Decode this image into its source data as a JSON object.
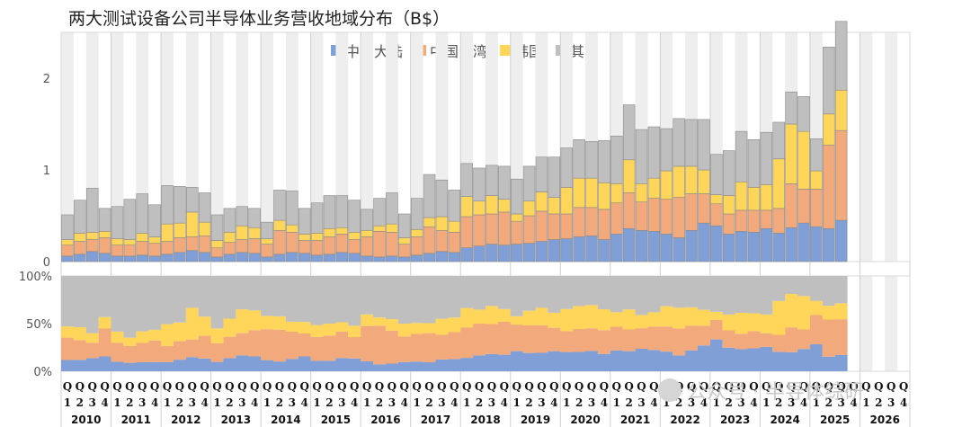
{
  "chart_data": {
    "type": "bar",
    "title": "两大测试设备公司半导体业务营收地域分布（B$）",
    "legend_position": "top",
    "years": [
      "2010",
      "2011",
      "2012",
      "2013",
      "2014",
      "2015",
      "2016",
      "2017",
      "2018",
      "2019",
      "2020",
      "2021",
      "2022",
      "2023",
      "2024",
      "2025",
      "2026"
    ],
    "quarter_labels": [
      "Q1",
      "Q2",
      "Q3",
      "Q4"
    ],
    "series": [
      {
        "name": "中国大陆",
        "color": "#7f9fd6",
        "values": [
          0.06,
          0.08,
          0.11,
          0.09,
          0.06,
          0.06,
          0.07,
          0.06,
          0.08,
          0.1,
          0.12,
          0.1,
          0.05,
          0.08,
          0.1,
          0.09,
          0.05,
          0.08,
          0.1,
          0.09,
          0.07,
          0.08,
          0.1,
          0.09,
          0.06,
          0.05,
          0.06,
          0.05,
          0.07,
          0.09,
          0.11,
          0.1,
          0.15,
          0.17,
          0.19,
          0.18,
          0.19,
          0.2,
          0.22,
          0.24,
          0.25,
          0.27,
          0.28,
          0.24,
          0.3,
          0.36,
          0.34,
          0.33,
          0.3,
          0.26,
          0.34,
          0.42,
          0.39,
          0.3,
          0.33,
          0.32,
          0.36,
          0.31,
          0.37,
          0.42,
          0.38,
          0.36,
          0.45
        ]
      },
      {
        "name": "中国台湾",
        "color": "#f2a97c",
        "values": [
          0.12,
          0.14,
          0.13,
          0.17,
          0.12,
          0.12,
          0.15,
          0.14,
          0.14,
          0.16,
          0.15,
          0.18,
          0.1,
          0.13,
          0.14,
          0.16,
          0.14,
          0.26,
          0.22,
          0.14,
          0.16,
          0.19,
          0.2,
          0.15,
          0.21,
          0.28,
          0.26,
          0.14,
          0.2,
          0.29,
          0.23,
          0.22,
          0.34,
          0.34,
          0.33,
          0.36,
          0.25,
          0.3,
          0.33,
          0.28,
          0.27,
          0.32,
          0.31,
          0.33,
          0.34,
          0.39,
          0.31,
          0.36,
          0.38,
          0.44,
          0.4,
          0.32,
          0.24,
          0.22,
          0.23,
          0.24,
          0.2,
          0.27,
          0.48,
          0.37,
          0.41,
          0.91,
          0.98
        ]
      },
      {
        "name": "韩国",
        "color": "#ffd55a",
        "values": [
          0.06,
          0.09,
          0.08,
          0.07,
          0.07,
          0.06,
          0.09,
          0.07,
          0.19,
          0.16,
          0.27,
          0.15,
          0.08,
          0.11,
          0.15,
          0.12,
          0.06,
          0.11,
          0.08,
          0.07,
          0.08,
          0.09,
          0.07,
          0.08,
          0.07,
          0.06,
          0.09,
          0.07,
          0.08,
          0.1,
          0.15,
          0.12,
          0.22,
          0.15,
          0.2,
          0.14,
          0.08,
          0.16,
          0.21,
          0.18,
          0.29,
          0.32,
          0.32,
          0.29,
          0.21,
          0.36,
          0.2,
          0.22,
          0.31,
          0.34,
          0.3,
          0.26,
          0.1,
          0.2,
          0.31,
          0.25,
          0.28,
          0.54,
          0.65,
          0.63,
          0.2,
          0.34,
          0.44
        ]
      },
      {
        "name": "其它",
        "color": "#bfbfbf",
        "values": [
          0.27,
          0.36,
          0.48,
          0.25,
          0.35,
          0.44,
          0.43,
          0.35,
          0.42,
          0.4,
          0.27,
          0.32,
          0.28,
          0.26,
          0.21,
          0.21,
          0.18,
          0.33,
          0.37,
          0.28,
          0.33,
          0.36,
          0.35,
          0.35,
          0.23,
          0.3,
          0.34,
          0.26,
          0.34,
          0.47,
          0.4,
          0.34,
          0.36,
          0.36,
          0.33,
          0.36,
          0.38,
          0.38,
          0.38,
          0.44,
          0.43,
          0.42,
          0.4,
          0.46,
          0.52,
          0.6,
          0.59,
          0.56,
          0.46,
          0.52,
          0.51,
          0.55,
          0.44,
          0.49,
          0.55,
          0.52,
          0.57,
          0.4,
          0.35,
          0.38,
          0.35,
          0.73,
          0.75
        ]
      }
    ],
    "top_panel": {
      "ylim": [
        0,
        2.5
      ],
      "yticks": [
        0,
        1,
        2
      ],
      "ytick_labels": [
        "0",
        "1",
        "2"
      ]
    },
    "bottom_panel": {
      "type": "stacked-percent-area",
      "yticks": [
        0,
        50,
        100
      ],
      "ytick_labels": [
        "0%",
        "50%",
        "100%"
      ]
    },
    "grid": "alternating-vertical-bands"
  },
  "watermark": {
    "text": "公众号 · 半导体综研"
  }
}
